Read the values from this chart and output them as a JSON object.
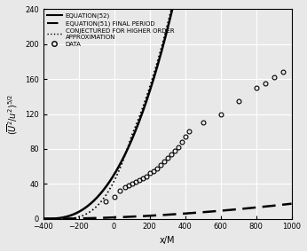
{
  "title": "",
  "xlabel": "x/M",
  "ylabel": "(Û²/u²)⁵/²",
  "ylabel_text": "$(\\overline{U}^2/u^2)^{5/2}$",
  "xlim": [
    -400,
    1000
  ],
  "ylim": [
    0,
    240
  ],
  "xticks": [
    -400,
    -200,
    0,
    200,
    400,
    600,
    800,
    1000
  ],
  "yticks": [
    0,
    40,
    80,
    120,
    160,
    200,
    240
  ],
  "background_color": "#e8e8e8",
  "grid": true,
  "legend_labels": [
    "EQUATION(52)",
    "EQUATION(51) FINAL PERIOD",
    "CONJECTURED FOR HIGHER ORDER\nAPPROXIMATION",
    "DATA"
  ],
  "data_points_x": [
    -50,
    0,
    30,
    60,
    80,
    100,
    120,
    140,
    160,
    180,
    200,
    220,
    240,
    260,
    280,
    300,
    320,
    340,
    360,
    380,
    400,
    420,
    500,
    600,
    700,
    800,
    850,
    900,
    950
  ],
  "data_points_y": [
    20,
    25,
    32,
    36,
    38,
    40,
    42,
    44,
    46,
    48,
    52,
    55,
    58,
    62,
    66,
    70,
    74,
    78,
    82,
    88,
    94,
    100,
    110,
    120,
    135,
    150,
    155,
    162,
    168
  ]
}
